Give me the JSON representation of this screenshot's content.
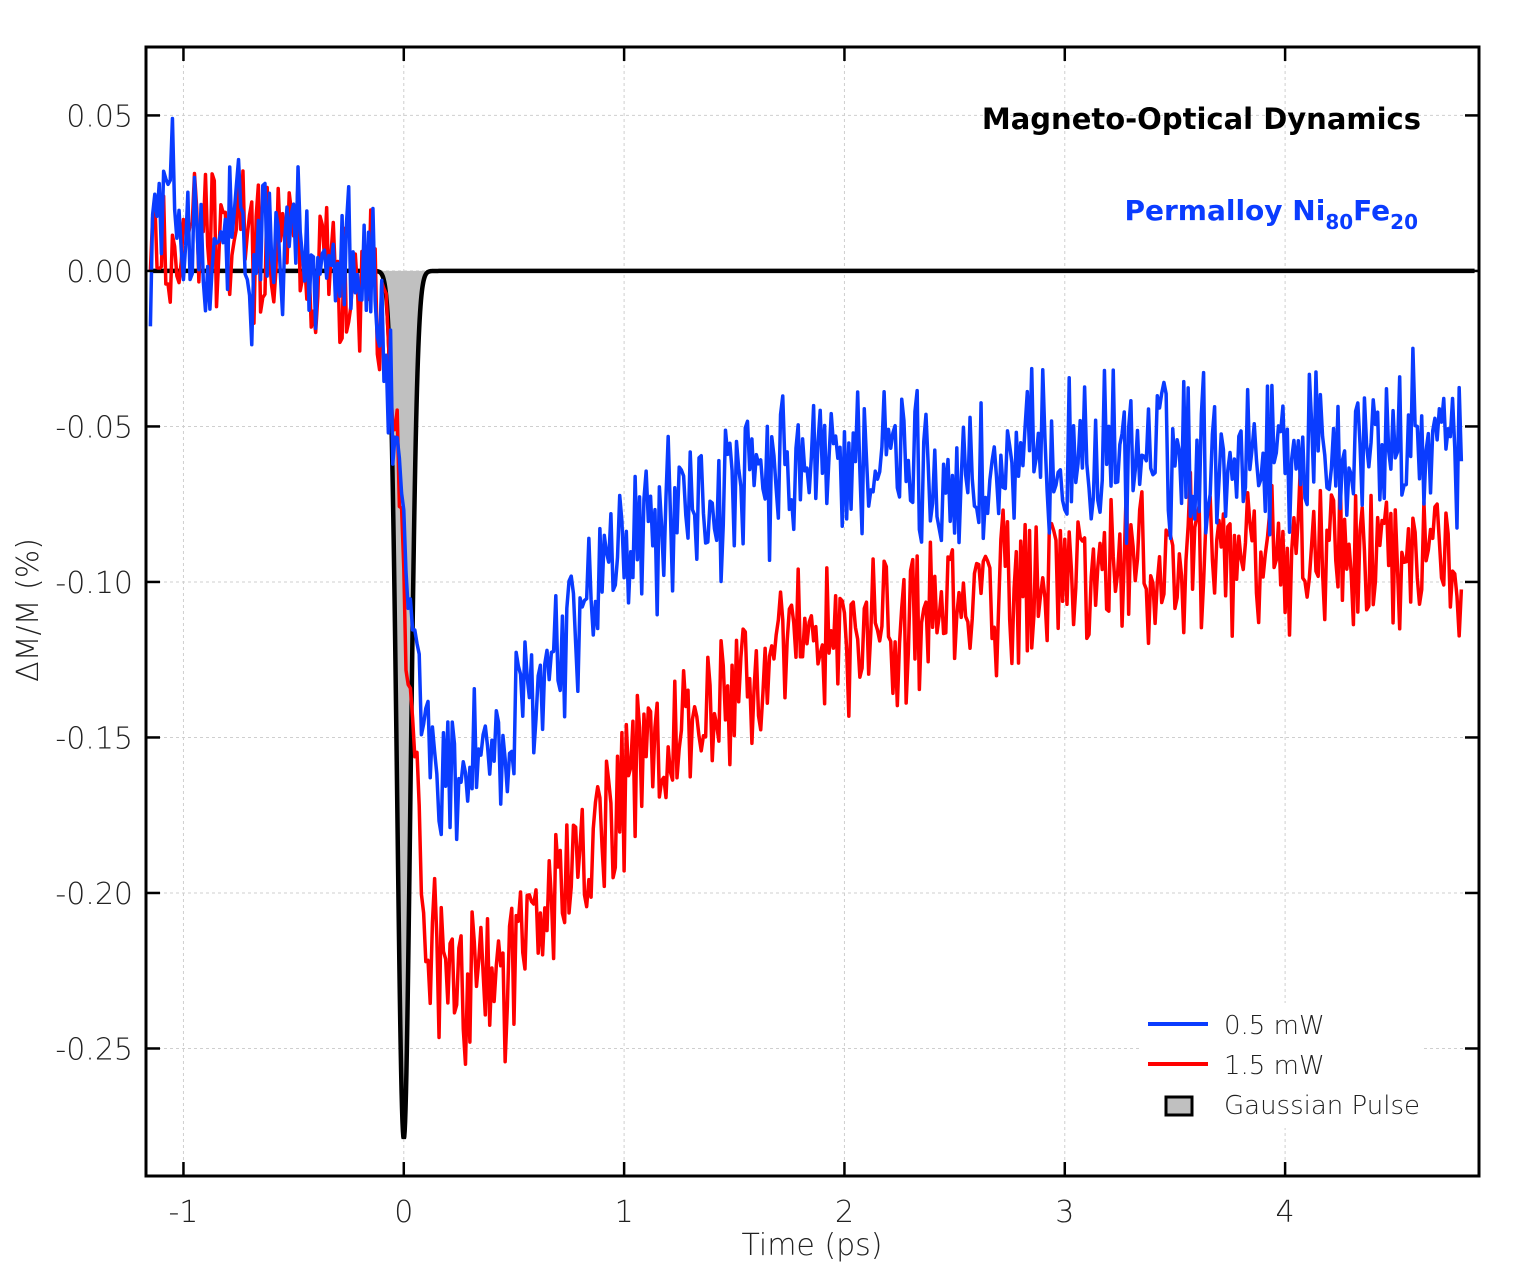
{
  "chart_data": {
    "type": "line",
    "title": "Magneto-Optical Dynamics",
    "subtitle": {
      "prefix": "Permalloy  Ni",
      "sub1": "80",
      "mid": "Fe",
      "sub2": "20"
    },
    "xlabel": "Time (ps)",
    "ylabel": "ΔM/M (%)",
    "xlim": [
      -1.17,
      4.88
    ],
    "ylim": [
      -0.291,
      0.072
    ],
    "xticks": [
      -1,
      0,
      1,
      2,
      3,
      4
    ],
    "xtick_labels": [
      "-1",
      "0",
      "1",
      "2",
      "3",
      "4"
    ],
    "yticks": [
      0.05,
      0.0,
      -0.05,
      -0.1,
      -0.15,
      -0.2,
      -0.25
    ],
    "ytick_labels": [
      "0.05",
      "0.00",
      "-0.05",
      "-0.10",
      "-0.15",
      "-0.20",
      "-0.25"
    ],
    "grid": true,
    "legend_position": "bottom-right",
    "series": [
      {
        "name": "0.5 mW",
        "color": "#0a3cff",
        "x": [
          -1.15,
          -1.1,
          -1.05,
          -1.0,
          -0.95,
          -0.9,
          -0.85,
          -0.8,
          -0.75,
          -0.7,
          -0.65,
          -0.6,
          -0.55,
          -0.5,
          -0.45,
          -0.4,
          -0.35,
          -0.3,
          -0.25,
          -0.2,
          -0.15,
          -0.1,
          -0.05,
          0.0,
          0.05,
          0.1,
          0.15,
          0.2,
          0.25,
          0.3,
          0.35,
          0.4,
          0.45,
          0.5,
          0.55,
          0.6,
          0.65,
          0.7,
          0.75,
          0.8,
          0.85,
          0.9,
          0.95,
          1.0,
          1.1,
          1.2,
          1.3,
          1.4,
          1.5,
          1.6,
          1.7,
          1.8,
          1.9,
          2.0,
          2.1,
          2.2,
          2.3,
          2.4,
          2.5,
          2.6,
          2.7,
          2.8,
          2.9,
          3.0,
          3.2,
          3.4,
          3.6,
          3.8,
          4.0,
          4.2,
          4.4,
          4.6,
          4.7,
          4.8
        ],
        "y": [
          0.012,
          0.02,
          0.025,
          0.015,
          0.01,
          -0.01,
          0.005,
          0.012,
          0.018,
          -0.015,
          0.015,
          0.008,
          0.0,
          0.01,
          0.005,
          -0.005,
          0.012,
          0.01,
          0.015,
          0.0,
          0.0,
          -0.02,
          -0.05,
          -0.095,
          -0.125,
          -0.145,
          -0.16,
          -0.165,
          -0.16,
          -0.155,
          -0.15,
          -0.155,
          -0.16,
          -0.15,
          -0.14,
          -0.135,
          -0.13,
          -0.125,
          -0.118,
          -0.112,
          -0.105,
          -0.1,
          -0.095,
          -0.09,
          -0.085,
          -0.08,
          -0.078,
          -0.075,
          -0.072,
          -0.07,
          -0.068,
          -0.065,
          -0.063,
          -0.06,
          -0.06,
          -0.062,
          -0.063,
          -0.065,
          -0.067,
          -0.068,
          -0.066,
          -0.063,
          -0.06,
          -0.058,
          -0.06,
          -0.058,
          -0.058,
          -0.057,
          -0.056,
          -0.056,
          -0.055,
          -0.055,
          -0.057,
          -0.06
        ]
      },
      {
        "name": "1.5 mW",
        "color": "#ff0000",
        "x": [
          -1.15,
          -1.1,
          -1.05,
          -1.0,
          -0.95,
          -0.9,
          -0.85,
          -0.8,
          -0.75,
          -0.7,
          -0.65,
          -0.6,
          -0.55,
          -0.5,
          -0.45,
          -0.4,
          -0.35,
          -0.3,
          -0.25,
          -0.2,
          -0.15,
          -0.1,
          -0.05,
          0.0,
          0.05,
          0.1,
          0.15,
          0.2,
          0.25,
          0.3,
          0.35,
          0.4,
          0.45,
          0.5,
          0.55,
          0.6,
          0.65,
          0.7,
          0.75,
          0.8,
          0.85,
          0.9,
          0.95,
          1.0,
          1.1,
          1.2,
          1.3,
          1.4,
          1.5,
          1.6,
          1.7,
          1.8,
          1.9,
          2.0,
          2.1,
          2.2,
          2.3,
          2.4,
          2.5,
          2.6,
          2.7,
          2.8,
          2.9,
          3.0,
          3.2,
          3.4,
          3.6,
          3.8,
          4.0,
          4.2,
          4.4,
          4.6,
          4.7,
          4.8
        ],
        "y": [
          0.005,
          0.01,
          0.005,
          0.01,
          0.012,
          0.015,
          0.005,
          0.01,
          0.015,
          0.005,
          0.01,
          0.012,
          0.008,
          0.01,
          0.005,
          -0.005,
          0.01,
          0.005,
          0.0,
          0.0,
          0.0,
          -0.01,
          -0.03,
          -0.09,
          -0.16,
          -0.205,
          -0.225,
          -0.23,
          -0.235,
          -0.23,
          -0.225,
          -0.225,
          -0.225,
          -0.22,
          -0.215,
          -0.21,
          -0.205,
          -0.2,
          -0.195,
          -0.19,
          -0.185,
          -0.18,
          -0.175,
          -0.168,
          -0.16,
          -0.153,
          -0.147,
          -0.14,
          -0.135,
          -0.13,
          -0.126,
          -0.123,
          -0.12,
          -0.118,
          -0.116,
          -0.114,
          -0.112,
          -0.11,
          -0.108,
          -0.106,
          -0.104,
          -0.102,
          -0.1,
          -0.098,
          -0.096,
          -0.094,
          -0.093,
          -0.092,
          -0.091,
          -0.09,
          -0.09,
          -0.089,
          -0.088,
          -0.088
        ]
      },
      {
        "name": "Gaussian Pulse",
        "color": "#000000",
        "fill": "#c0c0c0",
        "type": "area",
        "amplitude": -0.279,
        "center": 0.0,
        "sigma": 0.03
      }
    ]
  }
}
